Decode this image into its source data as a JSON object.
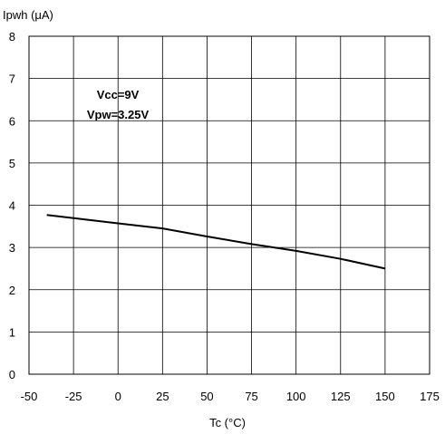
{
  "chart_data": {
    "type": "line",
    "ylabel": "Ipwh (μA)",
    "xlabel": "Tc (°C)",
    "xlim": [
      -50,
      175
    ],
    "ylim": [
      0,
      8
    ],
    "xticks": [
      -50,
      -25,
      0,
      25,
      50,
      75,
      100,
      125,
      150,
      175
    ],
    "yticks": [
      0,
      1,
      2,
      3,
      4,
      5,
      6,
      7,
      8
    ],
    "grid": true,
    "annotations": [
      "Vcc=9V",
      "Vpw=3.25V"
    ],
    "series": [
      {
        "x": [
          -40,
          0,
          25,
          50,
          75,
          100,
          125,
          150
        ],
        "y": [
          3.77,
          3.57,
          3.45,
          3.26,
          3.08,
          2.92,
          2.73,
          2.5
        ]
      }
    ],
    "colors": {
      "line": "#000000",
      "grid": "#000000",
      "background": "#ffffff"
    }
  }
}
